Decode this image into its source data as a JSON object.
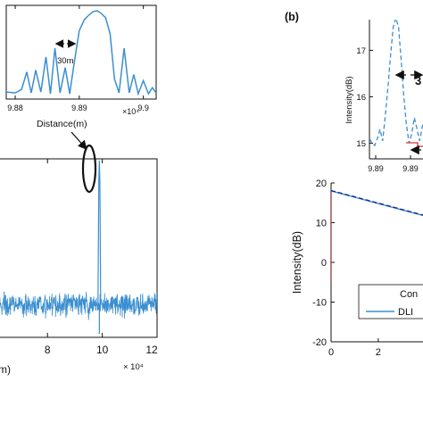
{
  "colors": {
    "trace": "#3b8fd0",
    "fit_line": "#1f2a8a",
    "red": "#d9343c",
    "axis": "#111111"
  },
  "chart_data": [
    {
      "id": "a_inset",
      "type": "line",
      "x_ticks": [
        "9.88",
        "9.89",
        "9.9"
      ],
      "x_exponent": "×10⁴",
      "xlabel": "Distance(m)",
      "xlim": [
        98786,
        99020
      ],
      "ylim": [
        0,
        1
      ],
      "annotation": "30m",
      "peak_x": 98928,
      "series": [
        {
          "x": [
            98786,
            98800,
            98810,
            98818,
            98825,
            98832,
            98840,
            98848,
            98855,
            98862,
            98870,
            98878,
            98885,
            98892,
            98900,
            98908,
            98915,
            98922,
            98928,
            98934,
            98941,
            98948,
            98955,
            98962,
            98970,
            98978,
            98985,
            98992,
            99000,
            99008,
            99014,
            99020
          ],
          "y": [
            0.05,
            0.04,
            0.08,
            0.28,
            0.04,
            0.3,
            0.05,
            0.45,
            0.03,
            0.55,
            0.04,
            0.33,
            0.03,
            0.38,
            0.75,
            0.88,
            0.93,
            0.97,
            0.98,
            0.95,
            0.9,
            0.72,
            0.2,
            0.04,
            0.55,
            0.04,
            0.25,
            0.03,
            0.18,
            0.03,
            0.1,
            0.04
          ]
        }
      ]
    },
    {
      "id": "a_main",
      "type": "line",
      "x_ticks": [
        "8",
        "10",
        "12"
      ],
      "x_exponent": "× 10⁴",
      "xlabel_partial": "m)",
      "xlim": [
        62000,
        120000
      ],
      "ylim": [
        0,
        1
      ],
      "peak_x": 98930,
      "noise_band": [
        0.12,
        0.22
      ]
    },
    {
      "id": "b_inset",
      "type": "line",
      "panel_label": "(b)",
      "ylabel": "Intensity(dB)",
      "y_ticks": [
        "15",
        "16",
        "17"
      ],
      "x_ticks": [
        "9.89",
        "9.89"
      ],
      "ylim": [
        14.7,
        17.7
      ],
      "annotation": "3",
      "series": [
        {
          "name": "",
          "style": "dashed",
          "x": [
            0,
            0.04,
            0.08,
            0.12,
            0.16,
            0.2,
            0.24,
            0.28,
            0.32,
            0.36,
            0.4,
            0.44,
            0.48,
            0.52,
            0.56,
            0.6,
            0.64,
            0.68,
            0.72,
            0.76,
            0.8,
            0.84,
            0.88,
            0.92,
            0.96,
            1.0
          ],
          "y": [
            15.1,
            15.0,
            14.95,
            15.1,
            15.3,
            15.05,
            15.6,
            16.2,
            16.9,
            17.5,
            17.7,
            17.5,
            16.8,
            16.0,
            15.4,
            15.0,
            15.2,
            15.55,
            15.3,
            15.05,
            15.35,
            15.6,
            15.4,
            15.2,
            15.45,
            15.3
          ]
        }
      ]
    },
    {
      "id": "b_main",
      "type": "line",
      "ylabel": "Intensity(dB)",
      "y_ticks": [
        "20",
        "10",
        "0",
        "-10",
        "-20"
      ],
      "x_ticks": [
        "0",
        "2"
      ],
      "ylim": [
        -20,
        20
      ],
      "xlim": [
        0,
        3.9
      ],
      "legend": {
        "placement": "lower-right",
        "entries": [
          "Con",
          "DLI"
        ]
      },
      "series": [
        {
          "name": "Con",
          "color": "#d9343c",
          "x": [
            0.0,
            0.0,
            0.02
          ],
          "y": [
            -5,
            18,
            18
          ]
        },
        {
          "name": "DLI",
          "color": "#3b8fd0",
          "x": [
            0.0,
            1.0,
            2.0,
            3.9
          ],
          "y": [
            18.0,
            16.4,
            14.8,
            11.8
          ]
        },
        {
          "name": "",
          "color": "#1f2a8a",
          "style": "dashed",
          "x": [
            0.0,
            3.9
          ],
          "y": [
            18.1,
            11.9
          ]
        }
      ]
    }
  ]
}
